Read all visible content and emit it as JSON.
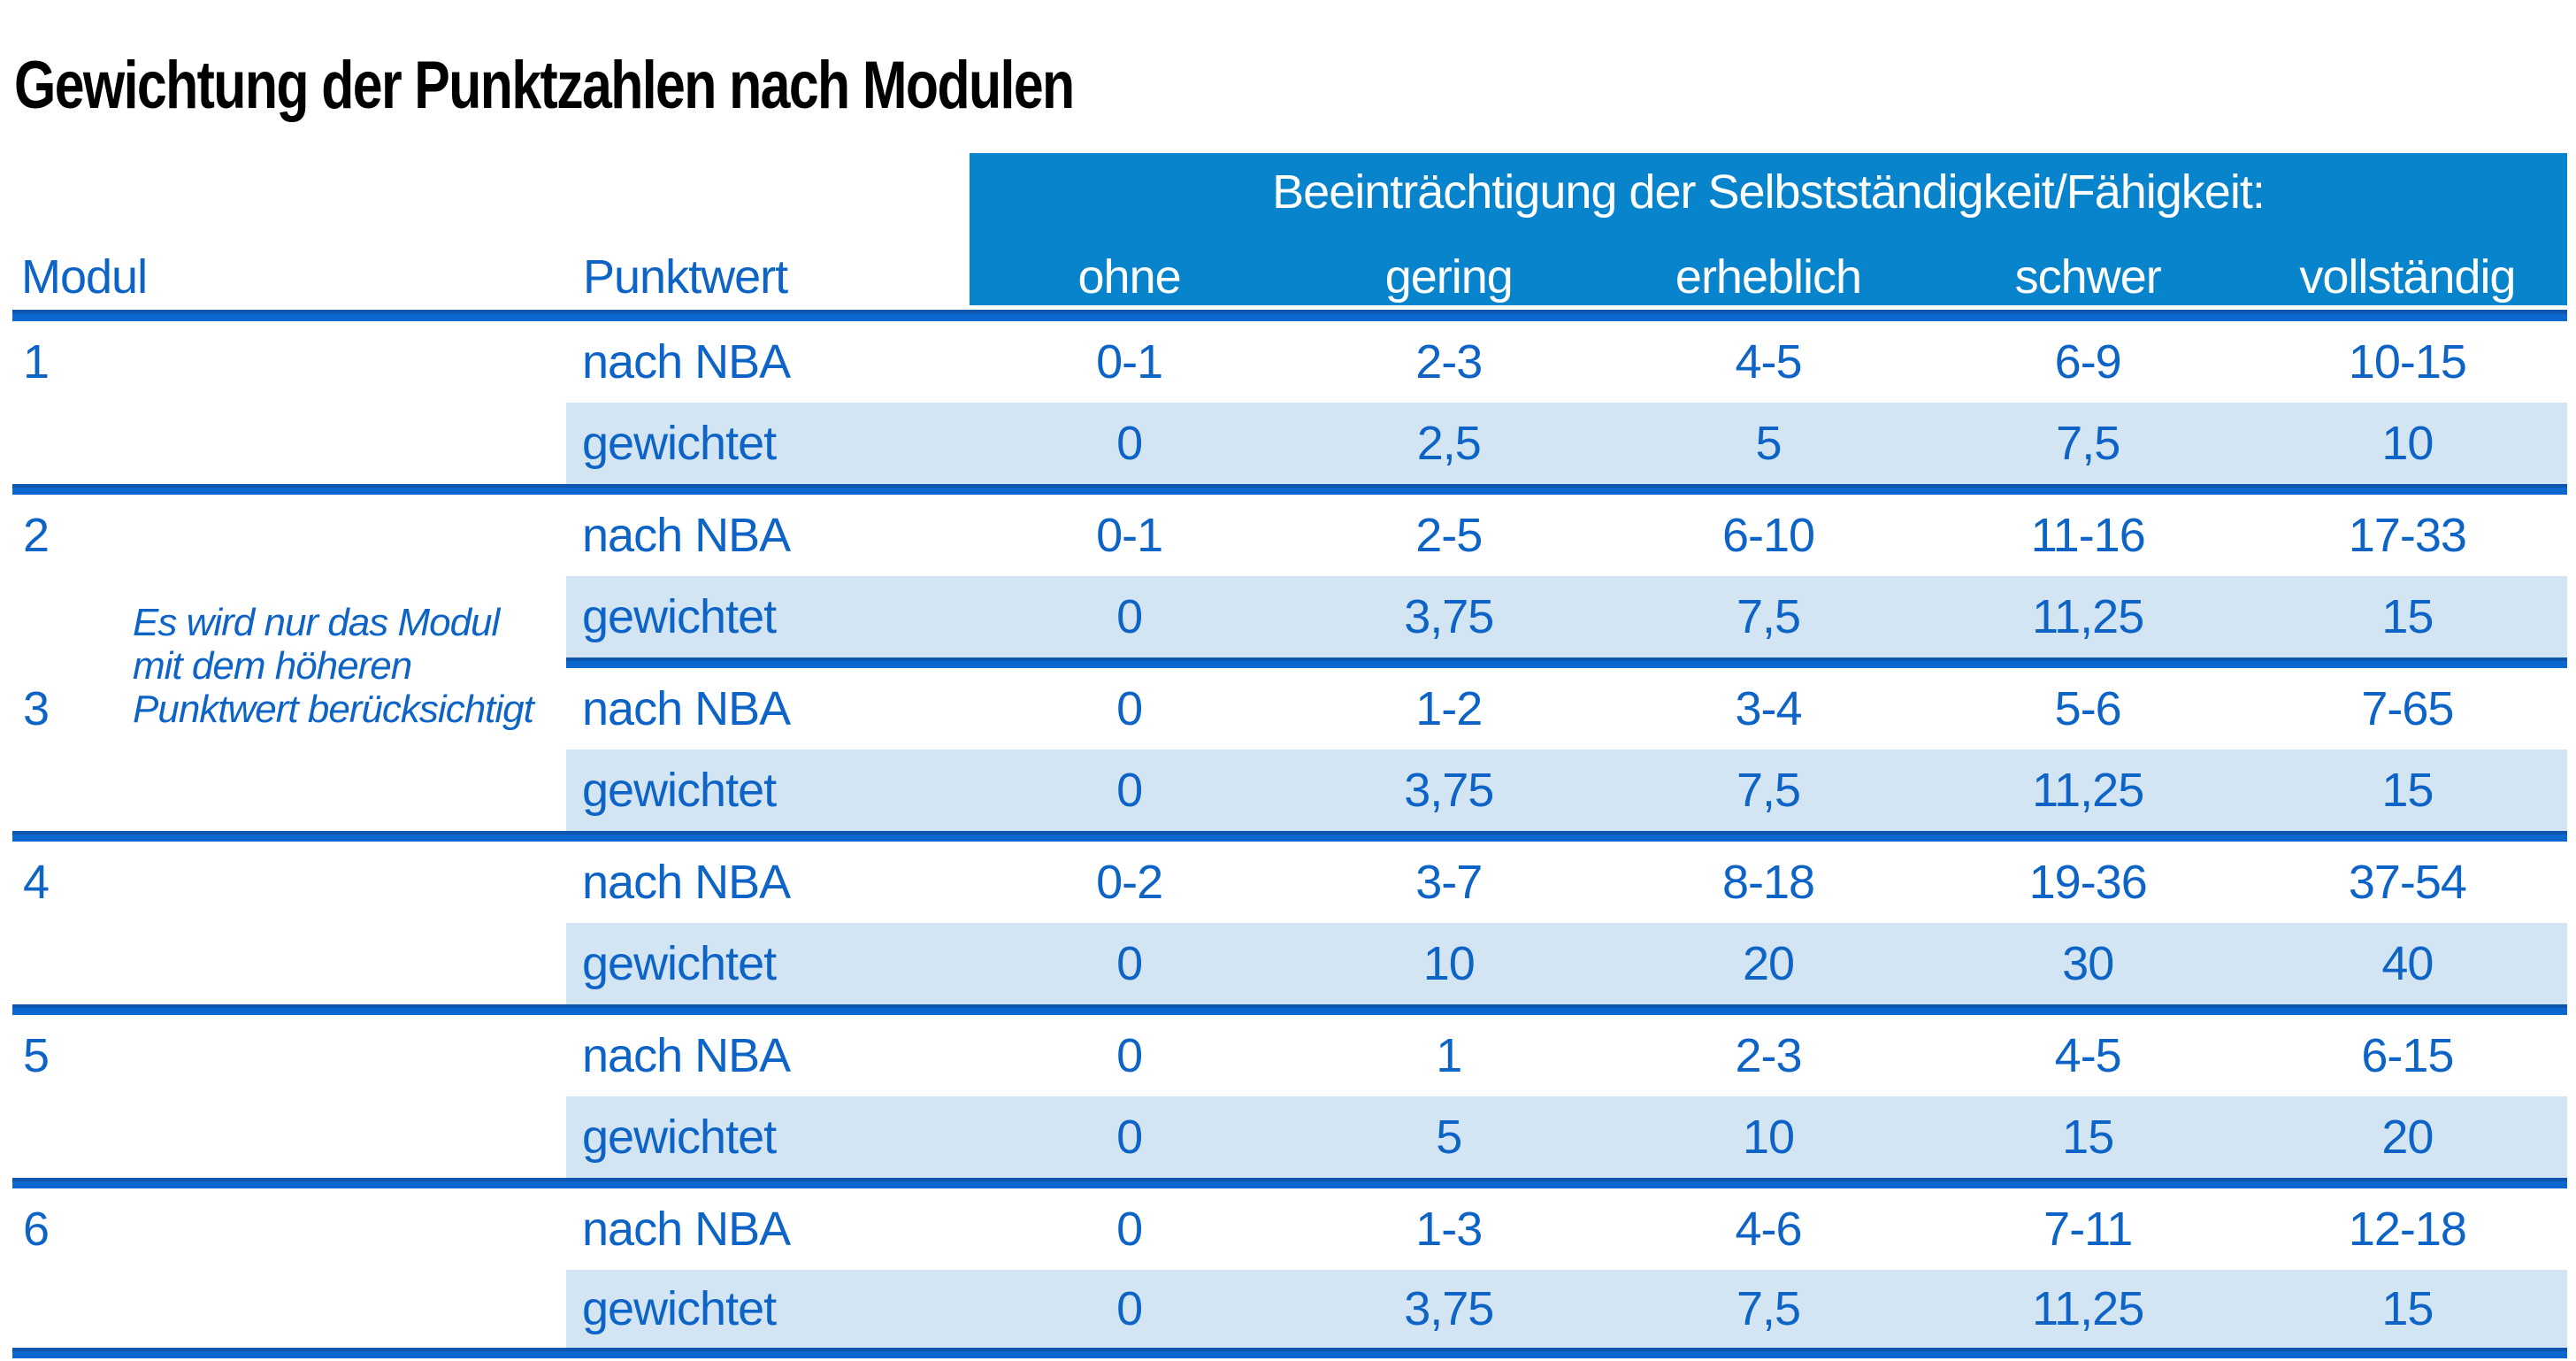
{
  "page": {
    "title": "Gewichtung der Punktzahlen nach Modulen"
  },
  "colors": {
    "header_band_blue": "#0884CC",
    "rule_blue": "#0C5FC4",
    "text_blue": "#0D64C6",
    "row_shade_blue": "#D3E5F2",
    "title_color": "#000000"
  },
  "table": {
    "band_title": "Beeinträchtigung der Selbstständigkeit/Fähigkeit:",
    "col_headers": {
      "modul": "Modul",
      "punktwert": "Punktwert",
      "levels": [
        "ohne",
        "gering",
        "erheblich",
        "schwer",
        "vollständig"
      ]
    },
    "row_labels": {
      "nba": "nach NBA",
      "weighted": "gewichtet"
    },
    "note": {
      "line1": "Es wird nur das Modul",
      "line2": "mit dem höheren",
      "line3": "Punktwert berücksichtigt"
    },
    "modules": [
      {
        "id": "1",
        "nba": [
          "0-1",
          "2-3",
          "4-5",
          "6-9",
          "10-15"
        ],
        "weighted": [
          "0",
          "2,5",
          "5",
          "7,5",
          "10"
        ]
      },
      {
        "id": "2",
        "nba": [
          "0-1",
          "2-5",
          "6-10",
          "11-16",
          "17-33"
        ],
        "weighted": [
          "0",
          "3,75",
          "7,5",
          "11,25",
          "15"
        ]
      },
      {
        "id": "3",
        "nba": [
          "0",
          "1-2",
          "3-4",
          "5-6",
          "7-65"
        ],
        "weighted": [
          "0",
          "3,75",
          "7,5",
          "11,25",
          "15"
        ]
      },
      {
        "id": "4",
        "nba": [
          "0-2",
          "3-7",
          "8-18",
          "19-36",
          "37-54"
        ],
        "weighted": [
          "0",
          "10",
          "20",
          "30",
          "40"
        ]
      },
      {
        "id": "5",
        "nba": [
          "0",
          "1",
          "2-3",
          "4-5",
          "6-15"
        ],
        "weighted": [
          "0",
          "5",
          "10",
          "15",
          "20"
        ]
      },
      {
        "id": "6",
        "nba": [
          "0",
          "1-3",
          "4-6",
          "7-11",
          "12-18"
        ],
        "weighted": [
          "0",
          "3,75",
          "7,5",
          "11,25",
          "15"
        ]
      }
    ]
  }
}
